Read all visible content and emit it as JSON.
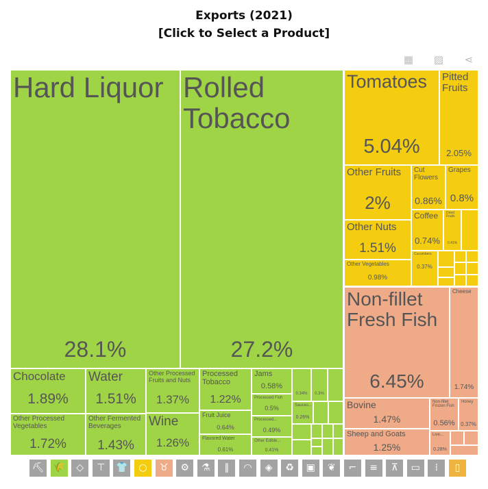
{
  "title": {
    "line1": "Exports (2021)",
    "line2": "[Click to Select a Product]"
  },
  "toolbar": {
    "table": "table-icon",
    "image": "image-icon",
    "share": "share-icon"
  },
  "colors": {
    "vegetable": "#a0d447",
    "fruit": "#f4cd11",
    "animal": "#efaa88",
    "chemicals": "#efb33f",
    "inactive": "#a3a3a3"
  },
  "products": [
    {
      "label": "Hard Liquor",
      "value": "28.1%",
      "group": "vegetable"
    },
    {
      "label": "Rolled Tobacco",
      "value": "27.2%",
      "group": "vegetable"
    },
    {
      "label": "Chocolate",
      "value": "1.89%",
      "group": "vegetable"
    },
    {
      "label": "Other Processed Vegetables",
      "value": "1.72%",
      "group": "vegetable"
    },
    {
      "label": "Water",
      "value": "1.51%",
      "group": "vegetable"
    },
    {
      "label": "Other Fermented Beverages",
      "value": "1.43%",
      "group": "vegetable"
    },
    {
      "label": "Other Processed Fruits and Nuts",
      "value": "1.37%",
      "group": "vegetable"
    },
    {
      "label": "Wine",
      "value": "1.26%",
      "group": "vegetable"
    },
    {
      "label": "Processed Tobacco",
      "value": "1.22%",
      "group": "vegetable"
    },
    {
      "label": "Fruit Juice",
      "value": "0.64%",
      "group": "vegetable"
    },
    {
      "label": "Flavored Water",
      "value": "0.61%",
      "group": "vegetable"
    },
    {
      "label": "Jams",
      "value": "0.58%",
      "group": "vegetable"
    },
    {
      "label": "Processed Fish",
      "value": "0.5%",
      "group": "vegetable"
    },
    {
      "label": "Processed...",
      "value": "0.49%",
      "group": "vegetable"
    },
    {
      "label": "Other Edible...",
      "value": "0.41%",
      "group": "vegetable"
    },
    {
      "label": "",
      "value": "0.34%",
      "group": "vegetable"
    },
    {
      "label": "",
      "value": "0.3%",
      "group": "vegetable"
    },
    {
      "label": "Sauces...",
      "value": "0.26%",
      "group": "vegetable"
    },
    {
      "label": "Tomatoes",
      "value": "5.04%",
      "group": "fruit"
    },
    {
      "label": "Pitted Fruits",
      "value": "2.05%",
      "group": "fruit"
    },
    {
      "label": "Other Fruits",
      "value": "2%",
      "group": "fruit"
    },
    {
      "label": "Other Nuts",
      "value": "1.51%",
      "group": "fruit"
    },
    {
      "label": "Other Vegetables",
      "value": "0.98%",
      "group": "fruit"
    },
    {
      "label": "Cut Flowers",
      "value": "0.86%",
      "group": "fruit"
    },
    {
      "label": "Grapes",
      "value": "0.8%",
      "group": "fruit"
    },
    {
      "label": "Coffee",
      "value": "0.74%",
      "group": "fruit"
    },
    {
      "label": "Dried Fruits",
      "value": "0.41%",
      "group": "fruit"
    },
    {
      "label": "Cucumbers",
      "value": "0.37%",
      "group": "fruit"
    },
    {
      "label": "Non-fillet Fresh Fish",
      "value": "6.45%",
      "group": "animal"
    },
    {
      "label": "Cheese",
      "value": "1.74%",
      "group": "animal"
    },
    {
      "label": "Bovine",
      "value": "1.47%",
      "group": "animal"
    },
    {
      "label": "Sheep and Goats",
      "value": "1.25%",
      "group": "animal"
    },
    {
      "label": "Non-fillet Frozen Fish",
      "value": "0.56%",
      "group": "animal"
    },
    {
      "label": "Honey",
      "value": "0.37%",
      "group": "animal"
    },
    {
      "label": "Live...",
      "value": "0.28%",
      "group": "animal"
    }
  ],
  "sectors": [
    {
      "icon": "pickaxe-icon",
      "active": false
    },
    {
      "icon": "wheat-icon",
      "active": true,
      "color": "#a0d447"
    },
    {
      "icon": "diamond-icon",
      "active": false
    },
    {
      "icon": "anvil-icon",
      "active": false
    },
    {
      "icon": "shirt-icon",
      "active": false
    },
    {
      "icon": "orange-fruit-icon",
      "active": true,
      "color": "#f4cd11"
    },
    {
      "icon": "cow-icon",
      "active": true,
      "color": "#efaa88"
    },
    {
      "icon": "gear-icon",
      "active": false
    },
    {
      "icon": "flask-icon",
      "active": false
    },
    {
      "icon": "road-icon",
      "active": false
    },
    {
      "icon": "gauge-icon",
      "active": false
    },
    {
      "icon": "stone-icon",
      "active": false
    },
    {
      "icon": "recycle-icon",
      "active": false
    },
    {
      "icon": "box-icon",
      "active": false
    },
    {
      "icon": "leather-icon",
      "active": false
    },
    {
      "icon": "shoe-icon",
      "active": false
    },
    {
      "icon": "scroll-icon",
      "active": false
    },
    {
      "icon": "easel-icon",
      "active": false
    },
    {
      "icon": "wood-icon",
      "active": false
    },
    {
      "icon": "bullets-icon",
      "active": false
    },
    {
      "icon": "oil-can-icon",
      "active": true,
      "color": "#efb33f"
    }
  ]
}
